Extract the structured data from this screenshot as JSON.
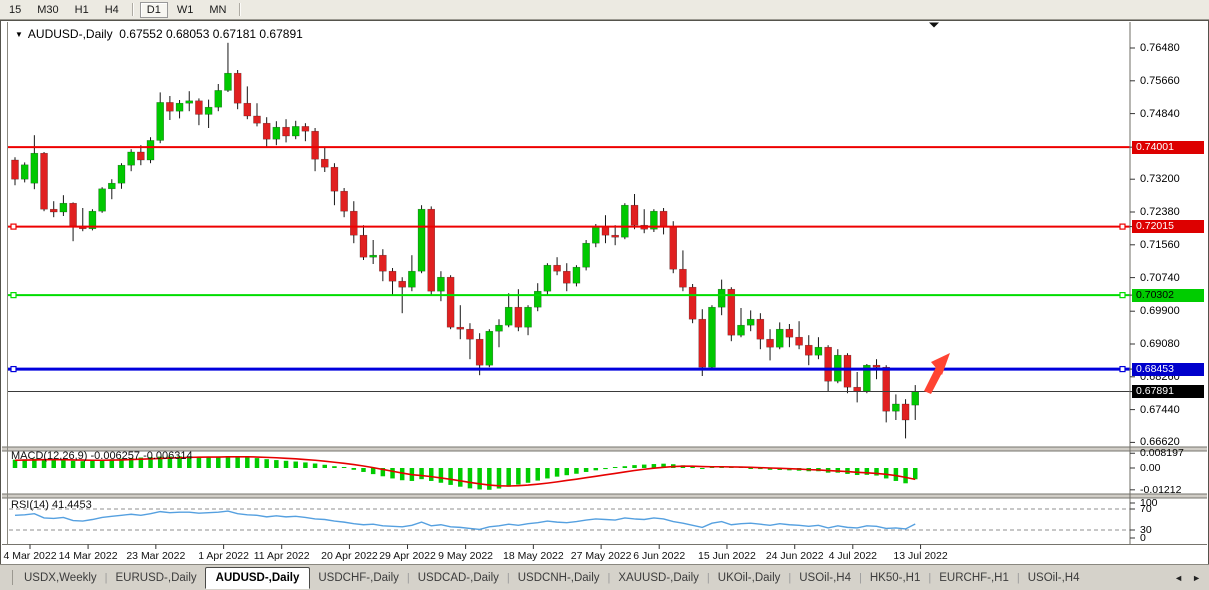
{
  "toolbar": {
    "timeframes": [
      "15",
      "M30",
      "H1",
      "H4",
      "D1",
      "W1",
      "MN"
    ],
    "active": "D1"
  },
  "chart": {
    "toggle_icon": "▼",
    "symbol_title": "AUDUSD-,Daily",
    "ohlc_text": "0.67552 0.68053 0.67181 0.67891",
    "price_axis_labels": [
      "0.76480",
      "0.75660",
      "0.74840",
      "0.73200",
      "0.72380",
      "0.71560",
      "0.70740",
      "0.69900",
      "0.69080",
      "0.68260",
      "0.67440",
      "0.66620"
    ],
    "hlines": [
      {
        "price": 0.74001,
        "label": "0.74001",
        "color": "#ee0000",
        "width": 2,
        "badge_bg": "#dd0000",
        "badge_fg": "#ffffff",
        "handles": false
      },
      {
        "price": 0.72015,
        "label": "0.72015",
        "color": "#ee0000",
        "width": 2,
        "badge_bg": "#dd0000",
        "badge_fg": "#ffffff",
        "handles": true
      },
      {
        "price": 0.70302,
        "label": "0.70302",
        "color": "#00dd00",
        "width": 2,
        "badge_bg": "#00cc00",
        "badge_fg": "#000000",
        "handles": true
      },
      {
        "price": 0.68453,
        "label": "0.68453",
        "color": "#0000dd",
        "width": 3,
        "badge_bg": "#0000cc",
        "badge_fg": "#ffffff",
        "handles": true
      },
      {
        "price": 0.67891,
        "label": "0.67891",
        "color": "#3a3a3a",
        "width": 1,
        "badge_bg": "#000000",
        "badge_fg": "#ffffff",
        "handles": false
      }
    ],
    "annotations": {
      "up_arrow": {
        "type": "up-arrow",
        "color": "#ff4433"
      },
      "shift_marker": {
        "type": "triangle-down",
        "color": "#111111"
      }
    }
  },
  "chart_data": {
    "type": "candlestick",
    "symbol": "AUDUSD",
    "timeframe": "Daily",
    "up_color": "#00c800",
    "down_color": "#e02020",
    "candles": [
      [
        0.7368,
        0.7375,
        0.7305,
        0.732
      ],
      [
        0.732,
        0.7362,
        0.7312,
        0.7356
      ],
      [
        0.731,
        0.743,
        0.7295,
        0.7385
      ],
      [
        0.7385,
        0.7388,
        0.724,
        0.7245
      ],
      [
        0.7245,
        0.7265,
        0.7225,
        0.7238
      ],
      [
        0.7238,
        0.728,
        0.7228,
        0.726
      ],
      [
        0.726,
        0.7262,
        0.7165,
        0.7203
      ],
      [
        0.7203,
        0.7248,
        0.719,
        0.7196
      ],
      [
        0.7196,
        0.7245,
        0.7192,
        0.724
      ],
      [
        0.724,
        0.73,
        0.7236,
        0.7296
      ],
      [
        0.7296,
        0.732,
        0.727,
        0.731
      ],
      [
        0.731,
        0.736,
        0.7296,
        0.7355
      ],
      [
        0.7355,
        0.7395,
        0.734,
        0.7388
      ],
      [
        0.7388,
        0.7405,
        0.7355,
        0.7368
      ],
      [
        0.7368,
        0.7425,
        0.736,
        0.7417
      ],
      [
        0.7417,
        0.7537,
        0.741,
        0.7512
      ],
      [
        0.7512,
        0.7528,
        0.7468,
        0.749
      ],
      [
        0.749,
        0.7518,
        0.7472,
        0.751
      ],
      [
        0.751,
        0.754,
        0.749,
        0.7516
      ],
      [
        0.7516,
        0.7522,
        0.7455,
        0.7482
      ],
      [
        0.7482,
        0.7519,
        0.7448,
        0.75
      ],
      [
        0.75,
        0.7558,
        0.749,
        0.7542
      ],
      [
        0.7542,
        0.7661,
        0.7538,
        0.7585
      ],
      [
        0.7585,
        0.7593,
        0.7495,
        0.751
      ],
      [
        0.751,
        0.7552,
        0.747,
        0.7478
      ],
      [
        0.7478,
        0.751,
        0.7452,
        0.746
      ],
      [
        0.746,
        0.7475,
        0.74,
        0.742
      ],
      [
        0.742,
        0.7465,
        0.7405,
        0.745
      ],
      [
        0.745,
        0.747,
        0.7412,
        0.7428
      ],
      [
        0.7428,
        0.7466,
        0.742,
        0.7452
      ],
      [
        0.7452,
        0.746,
        0.7415,
        0.744
      ],
      [
        0.744,
        0.7448,
        0.734,
        0.737
      ],
      [
        0.737,
        0.7398,
        0.7338,
        0.735
      ],
      [
        0.735,
        0.736,
        0.7255,
        0.729
      ],
      [
        0.729,
        0.7298,
        0.7225,
        0.724
      ],
      [
        0.724,
        0.7265,
        0.716,
        0.718
      ],
      [
        0.718,
        0.7205,
        0.7118,
        0.7125
      ],
      [
        0.7125,
        0.7168,
        0.7108,
        0.713
      ],
      [
        0.713,
        0.7145,
        0.7065,
        0.709
      ],
      [
        0.709,
        0.7098,
        0.703,
        0.7065
      ],
      [
        0.7065,
        0.7075,
        0.6985,
        0.705
      ],
      [
        0.705,
        0.713,
        0.704,
        0.709
      ],
      [
        0.709,
        0.7255,
        0.7085,
        0.7245
      ],
      [
        0.7245,
        0.7252,
        0.703,
        0.704
      ],
      [
        0.704,
        0.709,
        0.7015,
        0.7075
      ],
      [
        0.7075,
        0.708,
        0.6945,
        0.695
      ],
      [
        0.695,
        0.7005,
        0.692,
        0.6945
      ],
      [
        0.6945,
        0.696,
        0.687,
        0.692
      ],
      [
        0.692,
        0.6935,
        0.683,
        0.6855
      ],
      [
        0.6855,
        0.6945,
        0.685,
        0.694
      ],
      [
        0.694,
        0.697,
        0.69,
        0.6955
      ],
      [
        0.6955,
        0.7035,
        0.695,
        0.7
      ],
      [
        0.7,
        0.7045,
        0.694,
        0.695
      ],
      [
        0.695,
        0.7005,
        0.693,
        0.7
      ],
      [
        0.7,
        0.706,
        0.699,
        0.704
      ],
      [
        0.704,
        0.711,
        0.703,
        0.7105
      ],
      [
        0.7105,
        0.7125,
        0.708,
        0.709
      ],
      [
        0.709,
        0.711,
        0.704,
        0.706
      ],
      [
        0.706,
        0.7105,
        0.7052,
        0.71
      ],
      [
        0.71,
        0.7168,
        0.7092,
        0.716
      ],
      [
        0.716,
        0.7208,
        0.715,
        0.72
      ],
      [
        0.72,
        0.723,
        0.716,
        0.718
      ],
      [
        0.718,
        0.7205,
        0.7155,
        0.7175
      ],
      [
        0.7175,
        0.726,
        0.717,
        0.7255
      ],
      [
        0.7255,
        0.7283,
        0.7195,
        0.7205
      ],
      [
        0.7205,
        0.7245,
        0.7185,
        0.7195
      ],
      [
        0.7195,
        0.7245,
        0.7188,
        0.724
      ],
      [
        0.724,
        0.7248,
        0.7182,
        0.72
      ],
      [
        0.72,
        0.7215,
        0.7085,
        0.7095
      ],
      [
        0.7095,
        0.7142,
        0.704,
        0.705
      ],
      [
        0.705,
        0.7058,
        0.696,
        0.697
      ],
      [
        0.697,
        0.6995,
        0.6828,
        0.685
      ],
      [
        0.685,
        0.7005,
        0.6845,
        0.7
      ],
      [
        0.7,
        0.7069,
        0.698,
        0.7045
      ],
      [
        0.7045,
        0.705,
        0.6915,
        0.693
      ],
      [
        0.693,
        0.6998,
        0.6925,
        0.6955
      ],
      [
        0.6955,
        0.6992,
        0.694,
        0.697
      ],
      [
        0.697,
        0.6985,
        0.6895,
        0.692
      ],
      [
        0.692,
        0.6945,
        0.6867,
        0.69
      ],
      [
        0.69,
        0.6962,
        0.6895,
        0.6945
      ],
      [
        0.6945,
        0.6958,
        0.69,
        0.6925
      ],
      [
        0.6925,
        0.6965,
        0.6895,
        0.6905
      ],
      [
        0.6905,
        0.693,
        0.6855,
        0.688
      ],
      [
        0.688,
        0.6925,
        0.687,
        0.69
      ],
      [
        0.69,
        0.6905,
        0.679,
        0.6815
      ],
      [
        0.6815,
        0.6895,
        0.681,
        0.688
      ],
      [
        0.688,
        0.6885,
        0.6785,
        0.68
      ],
      [
        0.68,
        0.6838,
        0.6762,
        0.679
      ],
      [
        0.679,
        0.6858,
        0.6785,
        0.6855
      ],
      [
        0.6855,
        0.687,
        0.682,
        0.685
      ],
      [
        0.685,
        0.6855,
        0.6712,
        0.674
      ],
      [
        0.674,
        0.6782,
        0.6718,
        0.6758
      ],
      [
        0.6758,
        0.677,
        0.6672,
        0.6718
      ],
      [
        0.67552,
        0.68053,
        0.67181,
        0.67891
      ]
    ],
    "x_ticks": [
      {
        "label": "4 Mar 2022",
        "index": 0
      },
      {
        "label": "14 Mar 2022",
        "index": 6
      },
      {
        "label": "23 Mar 2022",
        "index": 13
      },
      {
        "label": "1 Apr 2022",
        "index": 20
      },
      {
        "label": "11 Apr 2022",
        "index": 26
      },
      {
        "label": "20 Apr 2022",
        "index": 33
      },
      {
        "label": "29 Apr 2022",
        "index": 39
      },
      {
        "label": "9 May 2022",
        "index": 45
      },
      {
        "label": "18 May 2022",
        "index": 52
      },
      {
        "label": "27 May 2022",
        "index": 59
      },
      {
        "label": "6 Jun 2022",
        "index": 65
      },
      {
        "label": "15 Jun 2022",
        "index": 72
      },
      {
        "label": "24 Jun 2022",
        "index": 79
      },
      {
        "label": "4 Jul 2022",
        "index": 85
      },
      {
        "label": "13 Jul 2022",
        "index": 92
      }
    ],
    "macd": {
      "label": "MACD(12,26,9)",
      "value_text": "-0.006257 -0.006314",
      "scale": [
        {
          "label": "0.008197",
          "value": 0.008197
        },
        {
          "label": "0.00",
          "value": 0.0
        },
        {
          "label": "-0.01212",
          "value": -0.01212
        }
      ],
      "histogram_color": "#00cc00",
      "signal_color": "#e60000",
      "histogram": [
        0.0046,
        0.0048,
        0.0051,
        0.0049,
        0.0046,
        0.0044,
        0.004,
        0.0038,
        0.004,
        0.0044,
        0.0048,
        0.0052,
        0.0056,
        0.0058,
        0.006,
        0.0063,
        0.0064,
        0.0065,
        0.0065,
        0.0064,
        0.0063,
        0.0064,
        0.0066,
        0.0064,
        0.006,
        0.0055,
        0.0049,
        0.0044,
        0.004,
        0.0036,
        0.0031,
        0.0025,
        0.0018,
        0.001,
        0.0002,
        -0.001,
        -0.0022,
        -0.0034,
        -0.0046,
        -0.0058,
        -0.0068,
        -0.0072,
        -0.0062,
        -0.0072,
        -0.0082,
        -0.0094,
        -0.0104,
        -0.0113,
        -0.0119,
        -0.0121,
        -0.0114,
        -0.0104,
        -0.0092,
        -0.0082,
        -0.007,
        -0.0058,
        -0.0048,
        -0.004,
        -0.0032,
        -0.0022,
        -0.0013,
        -0.0006,
        0.0002,
        0.001,
        0.0016,
        0.0019,
        0.0022,
        0.0024,
        0.0021,
        0.0015,
        0.0007,
        -0.0002,
        0.0002,
        0.0007,
        0.0004,
        0.0001,
        -0.0002,
        -0.0006,
        -0.001,
        -0.0011,
        -0.0013,
        -0.0015,
        -0.0018,
        -0.0018,
        -0.0026,
        -0.0026,
        -0.0033,
        -0.0039,
        -0.0038,
        -0.0042,
        -0.0058,
        -0.0072,
        -0.0085,
        -0.00626
      ],
      "signal": [
        0.0043,
        0.0044,
        0.0045,
        0.0046,
        0.0046,
        0.0046,
        0.0045,
        0.0044,
        0.0043,
        0.0043,
        0.0044,
        0.0045,
        0.0047,
        0.0049,
        0.0051,
        0.0053,
        0.0055,
        0.0057,
        0.0059,
        0.006,
        0.0061,
        0.0061,
        0.0062,
        0.0062,
        0.0062,
        0.0061,
        0.0059,
        0.0057,
        0.0054,
        0.0051,
        0.0047,
        0.0043,
        0.0038,
        0.0032,
        0.0026,
        0.0019,
        0.0011,
        0.0002,
        -0.0008,
        -0.0018,
        -0.0028,
        -0.0037,
        -0.0042,
        -0.0048,
        -0.0055,
        -0.0063,
        -0.0071,
        -0.008,
        -0.0088,
        -0.0095,
        -0.0099,
        -0.01,
        -0.0098,
        -0.0095,
        -0.009,
        -0.0084,
        -0.0077,
        -0.0069,
        -0.0062,
        -0.0054,
        -0.0046,
        -0.0038,
        -0.003,
        -0.0022,
        -0.0014,
        -0.0007,
        -0.0001,
        0.0004,
        0.0008,
        0.001,
        0.001,
        0.0008,
        0.0007,
        0.0007,
        0.0006,
        0.0005,
        0.0004,
        0.0002,
        0.0,
        -0.0002,
        -0.0004,
        -0.0006,
        -0.0009,
        -0.0011,
        -0.0014,
        -0.0017,
        -0.002,
        -0.0024,
        -0.0027,
        -0.003,
        -0.0035,
        -0.0042,
        -0.0052,
        -0.00631
      ]
    },
    "rsi": {
      "label": "RSI(14)",
      "value_text": "41.4453",
      "line_color": "#55a0e0",
      "levels": [
        70,
        30
      ],
      "scale": [
        {
          "label": "100",
          "y_value": 100
        },
        {
          "label": "70",
          "y_value": 70
        },
        {
          "label": "30",
          "y_value": 30
        },
        {
          "label": "0",
          "y_value": 0
        }
      ],
      "series": [
        58,
        59,
        61,
        53,
        52,
        54,
        48,
        47,
        50,
        54,
        56,
        58,
        60,
        58,
        61,
        65,
        63,
        64,
        64,
        62,
        63,
        64,
        66,
        61,
        59,
        58,
        55,
        57,
        55,
        56,
        54,
        51,
        50,
        47,
        45,
        42,
        40,
        41,
        38,
        37,
        36,
        39,
        45,
        38,
        40,
        36,
        35,
        33,
        31,
        36,
        38,
        41,
        39,
        42,
        44,
        47,
        45,
        44,
        46,
        49,
        51,
        50,
        49,
        53,
        51,
        50,
        53,
        51,
        46,
        43,
        39,
        35,
        43,
        46,
        40,
        42,
        43,
        41,
        39,
        42,
        40,
        39,
        37,
        39,
        34,
        38,
        35,
        34,
        38,
        37,
        33,
        34,
        32,
        41.4
      ]
    }
  },
  "tabs": {
    "items": [
      "USDX,Weekly",
      "EURUSD-,Daily",
      "AUDUSD-,Daily",
      "USDCHF-,Daily",
      "USDCAD-,Daily",
      "USDCNH-,Daily",
      "XAUUSD-,Daily",
      "UKOil-,Daily",
      "USOil-,H4",
      "HK50-,H1",
      "EURCHF-,H1",
      "USOil-,H4"
    ],
    "active_index": 2,
    "scroll_left": "◄",
    "scroll_right": "►"
  }
}
